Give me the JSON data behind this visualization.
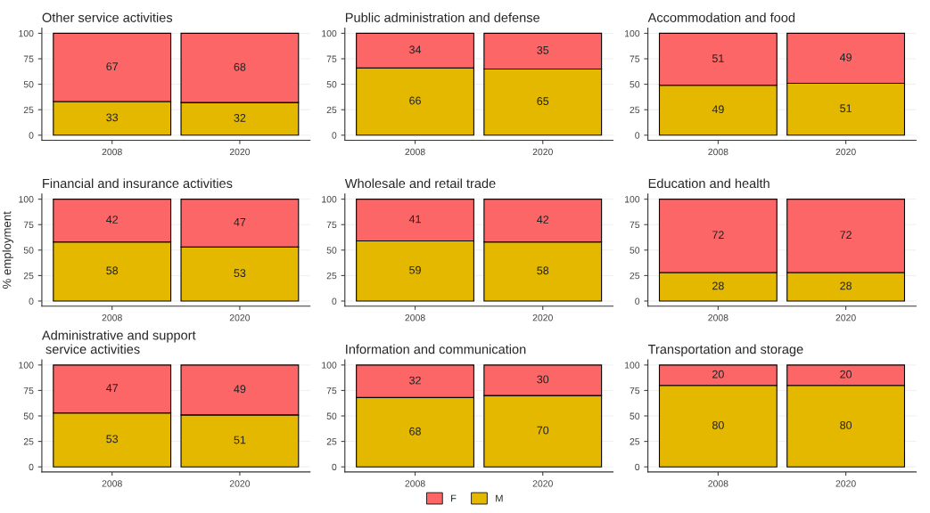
{
  "chart_data": [
    {
      "type": "bar",
      "title": "Other service activities",
      "categories": [
        "2008",
        "2020"
      ],
      "stacked": true,
      "data_labels": true,
      "ylim": [
        -5,
        105
      ],
      "yticks": [
        0,
        25,
        50,
        75,
        100
      ],
      "grid": "y",
      "legend": "bottom",
      "series": [
        {
          "name": "M",
          "color": "#e5b800",
          "values": [
            33,
            32
          ]
        },
        {
          "name": "F",
          "color": "#fc6666",
          "values": [
            67,
            68
          ]
        }
      ]
    },
    {
      "type": "bar",
      "title": "Public administration and defense",
      "categories": [
        "2008",
        "2020"
      ],
      "stacked": true,
      "data_labels": true,
      "ylim": [
        -5,
        105
      ],
      "yticks": [
        0,
        25,
        50,
        75,
        100
      ],
      "grid": "y",
      "legend": "bottom",
      "series": [
        {
          "name": "M",
          "color": "#e5b800",
          "values": [
            66,
            65
          ]
        },
        {
          "name": "F",
          "color": "#fc6666",
          "values": [
            34,
            35
          ]
        }
      ]
    },
    {
      "type": "bar",
      "title": "Accommodation and food",
      "categories": [
        "2008",
        "2020"
      ],
      "stacked": true,
      "data_labels": true,
      "ylim": [
        -5,
        105
      ],
      "yticks": [
        0,
        25,
        50,
        75,
        100
      ],
      "grid": "y",
      "legend": "bottom",
      "series": [
        {
          "name": "M",
          "color": "#e5b800",
          "values": [
            49,
            51
          ]
        },
        {
          "name": "F",
          "color": "#fc6666",
          "values": [
            51,
            49
          ]
        }
      ]
    },
    {
      "type": "bar",
      "title": "Financial and insurance activities",
      "ylabel": "% employment",
      "categories": [
        "2008",
        "2020"
      ],
      "stacked": true,
      "data_labels": true,
      "ylim": [
        -5,
        105
      ],
      "yticks": [
        0,
        25,
        50,
        75,
        100
      ],
      "grid": "y",
      "legend": "bottom",
      "series": [
        {
          "name": "M",
          "color": "#e5b800",
          "values": [
            58,
            53
          ]
        },
        {
          "name": "F",
          "color": "#fc6666",
          "values": [
            42,
            47
          ]
        }
      ]
    },
    {
      "type": "bar",
      "title": "Wholesale and retail trade",
      "categories": [
        "2008",
        "2020"
      ],
      "stacked": true,
      "data_labels": true,
      "ylim": [
        -5,
        105
      ],
      "yticks": [
        0,
        25,
        50,
        75,
        100
      ],
      "grid": "y",
      "legend": "bottom",
      "series": [
        {
          "name": "M",
          "color": "#e5b800",
          "values": [
            59,
            58
          ]
        },
        {
          "name": "F",
          "color": "#fc6666",
          "values": [
            41,
            42
          ]
        }
      ]
    },
    {
      "type": "bar",
      "title": "Education and health",
      "categories": [
        "2008",
        "2020"
      ],
      "stacked": true,
      "data_labels": true,
      "ylim": [
        -5,
        105
      ],
      "yticks": [
        0,
        25,
        50,
        75,
        100
      ],
      "grid": "y",
      "legend": "bottom",
      "series": [
        {
          "name": "M",
          "color": "#e5b800",
          "values": [
            28,
            28
          ]
        },
        {
          "name": "F",
          "color": "#fc6666",
          "values": [
            72,
            72
          ]
        }
      ]
    },
    {
      "type": "bar",
      "title": "Administrative and support\n service activities",
      "categories": [
        "2008",
        "2020"
      ],
      "stacked": true,
      "data_labels": true,
      "ylim": [
        -5,
        105
      ],
      "yticks": [
        0,
        25,
        50,
        75,
        100
      ],
      "grid": "y",
      "legend": "bottom",
      "series": [
        {
          "name": "M",
          "color": "#e5b800",
          "values": [
            53,
            51
          ]
        },
        {
          "name": "F",
          "color": "#fc6666",
          "values": [
            47,
            49
          ]
        }
      ]
    },
    {
      "type": "bar",
      "title": "Information and communication",
      "categories": [
        "2008",
        "2020"
      ],
      "stacked": true,
      "data_labels": true,
      "ylim": [
        -5,
        105
      ],
      "yticks": [
        0,
        25,
        50,
        75,
        100
      ],
      "grid": "y",
      "legend": "bottom",
      "series": [
        {
          "name": "M",
          "color": "#e5b800",
          "values": [
            68,
            70
          ]
        },
        {
          "name": "F",
          "color": "#fc6666",
          "values": [
            32,
            30
          ]
        }
      ]
    },
    {
      "type": "bar",
      "title": "Transportation and storage",
      "categories": [
        "2008",
        "2020"
      ],
      "stacked": true,
      "data_labels": true,
      "ylim": [
        -5,
        105
      ],
      "yticks": [
        0,
        25,
        50,
        75,
        100
      ],
      "grid": "y",
      "legend": "bottom",
      "series": [
        {
          "name": "M",
          "color": "#e5b800",
          "values": [
            80,
            80
          ]
        },
        {
          "name": "F",
          "color": "#fc6666",
          "values": [
            20,
            20
          ]
        }
      ]
    }
  ]
}
